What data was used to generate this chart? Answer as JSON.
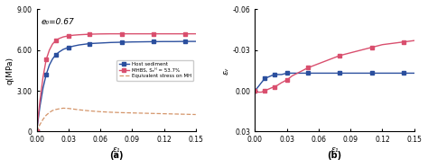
{
  "panel_a": {
    "title_annotation": "e₀=0.67",
    "ylabel": "q(MPa)",
    "xlabel": "ε₁",
    "xlabel_label": "(a)",
    "ylim": [
      0,
      9.0
    ],
    "xlim": [
      0,
      0.15
    ],
    "yticks": [
      0.0,
      3.0,
      6.0,
      9.0
    ],
    "yticklabels": [
      "0",
      "3.00",
      "6.00",
      "9.00"
    ],
    "xticks": [
      0.0,
      0.03,
      0.06,
      0.09,
      0.12,
      0.15
    ],
    "host_sediment_x": [
      0.0,
      0.003,
      0.006,
      0.009,
      0.012,
      0.015,
      0.018,
      0.021,
      0.025,
      0.03,
      0.035,
      0.04,
      0.05,
      0.06,
      0.07,
      0.08,
      0.09,
      0.1,
      0.11,
      0.12,
      0.13,
      0.14,
      0.15
    ],
    "host_sediment_y": [
      0.0,
      1.8,
      3.2,
      4.2,
      4.9,
      5.35,
      5.65,
      5.85,
      6.05,
      6.2,
      6.3,
      6.38,
      6.48,
      6.52,
      6.56,
      6.58,
      6.6,
      6.61,
      6.62,
      6.63,
      6.63,
      6.64,
      6.64
    ],
    "mhbs_x": [
      0.0,
      0.003,
      0.006,
      0.009,
      0.012,
      0.015,
      0.018,
      0.021,
      0.025,
      0.03,
      0.035,
      0.04,
      0.05,
      0.06,
      0.07,
      0.08,
      0.09,
      0.1,
      0.11,
      0.12,
      0.13,
      0.14,
      0.15
    ],
    "mhbs_y": [
      0.0,
      2.2,
      4.0,
      5.3,
      6.0,
      6.45,
      6.7,
      6.85,
      6.97,
      7.05,
      7.1,
      7.13,
      7.17,
      7.19,
      7.2,
      7.2,
      7.2,
      7.2,
      7.2,
      7.2,
      7.2,
      7.2,
      7.2
    ],
    "equiv_x": [
      0.0,
      0.003,
      0.006,
      0.009,
      0.012,
      0.015,
      0.018,
      0.021,
      0.025,
      0.03,
      0.035,
      0.04,
      0.05,
      0.06,
      0.07,
      0.08,
      0.09,
      0.1,
      0.11,
      0.12,
      0.13,
      0.14,
      0.15
    ],
    "equiv_y": [
      0.0,
      0.5,
      0.9,
      1.2,
      1.4,
      1.55,
      1.62,
      1.67,
      1.72,
      1.7,
      1.65,
      1.6,
      1.52,
      1.46,
      1.42,
      1.39,
      1.37,
      1.35,
      1.33,
      1.31,
      1.29,
      1.27,
      1.25
    ],
    "host_color": "#2b4f9e",
    "mhbs_color": "#d94f6e",
    "equiv_color": "#d4956a",
    "legend_labels": [
      "Host sediment",
      "MHBS, Sₑᴴ = 53.7%",
      "Equivalent stress on MH"
    ]
  },
  "panel_b": {
    "ylabel": "εᵥ",
    "xlabel": "ε₁",
    "xlabel_label": "(b)",
    "ylim": [
      -0.06,
      0.03
    ],
    "xlim": [
      0,
      0.15
    ],
    "yticks": [
      -0.06,
      -0.03,
      0.0,
      0.03
    ],
    "yticklabels": [
      "-0.06",
      "-0.03",
      "0.00",
      "0.03"
    ],
    "xticks": [
      0.0,
      0.03,
      0.06,
      0.09,
      0.12,
      0.15
    ],
    "host_x": [
      0.0,
      0.003,
      0.006,
      0.009,
      0.012,
      0.015,
      0.018,
      0.021,
      0.025,
      0.03,
      0.035,
      0.04,
      0.05,
      0.06,
      0.07,
      0.08,
      0.09,
      0.1,
      0.11,
      0.12,
      0.13,
      0.14,
      0.15
    ],
    "host_y": [
      0.0,
      -0.003,
      -0.006,
      -0.009,
      -0.01,
      -0.011,
      -0.012,
      -0.012,
      -0.012,
      -0.013,
      -0.013,
      -0.013,
      -0.013,
      -0.013,
      -0.013,
      -0.013,
      -0.013,
      -0.013,
      -0.013,
      -0.013,
      -0.013,
      -0.013,
      -0.013
    ],
    "mhbs_x": [
      0.0,
      0.003,
      0.006,
      0.009,
      0.012,
      0.015,
      0.018,
      0.021,
      0.025,
      0.03,
      0.035,
      0.04,
      0.05,
      0.06,
      0.07,
      0.08,
      0.09,
      0.1,
      0.11,
      0.12,
      0.13,
      0.14,
      0.15
    ],
    "mhbs_y": [
      0.0,
      0.001,
      0.001,
      0.0,
      -0.001,
      -0.002,
      -0.003,
      -0.004,
      -0.006,
      -0.008,
      -0.011,
      -0.013,
      -0.017,
      -0.02,
      -0.023,
      -0.026,
      -0.028,
      -0.03,
      -0.032,
      -0.034,
      -0.035,
      -0.036,
      -0.037
    ],
    "host_color": "#2b4f9e",
    "mhbs_color": "#d94f6e"
  },
  "bg_color": "#ffffff",
  "fig_width": 4.74,
  "fig_height": 1.87,
  "dpi": 100
}
